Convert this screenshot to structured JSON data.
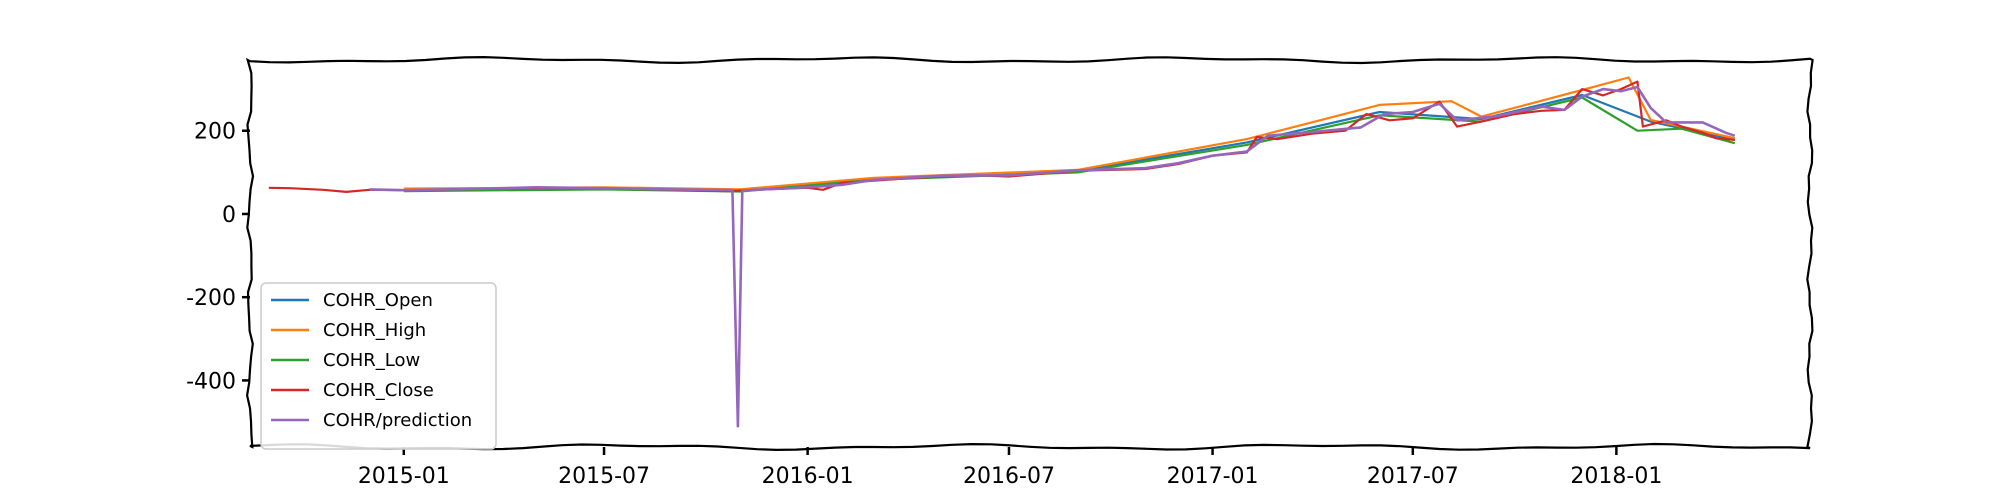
{
  "chart_data": {
    "type": "line",
    "x_type": "date",
    "xlim": [
      "2014-08-15",
      "2018-06-25"
    ],
    "ylim": [
      -560,
      370
    ],
    "x_ticks": [
      {
        "date": "2015-01-01",
        "label": "2015-01"
      },
      {
        "date": "2015-07-01",
        "label": "2015-07"
      },
      {
        "date": "2016-01-01",
        "label": "2016-01"
      },
      {
        "date": "2016-07-01",
        "label": "2016-07"
      },
      {
        "date": "2017-01-01",
        "label": "2017-01"
      },
      {
        "date": "2017-07-01",
        "label": "2017-07"
      },
      {
        "date": "2018-01-01",
        "label": "2018-01"
      }
    ],
    "y_ticks": [
      {
        "value": 200,
        "label": "200"
      },
      {
        "value": 0,
        "label": "0"
      },
      {
        "value": -200,
        "label": "-200"
      },
      {
        "value": -400,
        "label": "-400"
      }
    ],
    "legend_position": "lower-left",
    "series": [
      {
        "name": "COHR_Open",
        "color": "#1f77b4",
        "points": [
          [
            "2015-01-01",
            58
          ],
          [
            "2015-07-01",
            61
          ],
          [
            "2015-11-01",
            57
          ],
          [
            "2016-03-01",
            85
          ],
          [
            "2016-09-01",
            103
          ],
          [
            "2017-02-01",
            172
          ],
          [
            "2017-06-01",
            245
          ],
          [
            "2017-09-01",
            228
          ],
          [
            "2017-12-01",
            286
          ],
          [
            "2018-02-01",
            222
          ],
          [
            "2018-04-18",
            178
          ]
        ]
      },
      {
        "name": "COHR_High",
        "color": "#ff7f0e",
        "points": [
          [
            "2015-01-01",
            61
          ],
          [
            "2015-07-01",
            64
          ],
          [
            "2015-11-01",
            59
          ],
          [
            "2016-03-01",
            87
          ],
          [
            "2016-09-01",
            106
          ],
          [
            "2017-02-01",
            180
          ],
          [
            "2017-06-01",
            262
          ],
          [
            "2017-08-05",
            271
          ],
          [
            "2017-09-01",
            234
          ],
          [
            "2017-12-01",
            298
          ],
          [
            "2018-01-12",
            328
          ],
          [
            "2018-02-01",
            226
          ],
          [
            "2018-04-18",
            182
          ]
        ]
      },
      {
        "name": "COHR_Low",
        "color": "#2ca02c",
        "points": [
          [
            "2015-01-01",
            55
          ],
          [
            "2015-07-01",
            59
          ],
          [
            "2015-11-01",
            54
          ],
          [
            "2016-03-01",
            82
          ],
          [
            "2016-09-01",
            100
          ],
          [
            "2017-02-01",
            166
          ],
          [
            "2017-06-01",
            237
          ],
          [
            "2017-09-01",
            222
          ],
          [
            "2017-12-01",
            280
          ],
          [
            "2018-01-20",
            200
          ],
          [
            "2018-03-01",
            205
          ],
          [
            "2018-04-18",
            170
          ]
        ]
      },
      {
        "name": "COHR_Close",
        "color": "#d62728",
        "points": [
          [
            "2014-09-01",
            63
          ],
          [
            "2014-09-20",
            62
          ],
          [
            "2014-10-20",
            58
          ],
          [
            "2014-11-10",
            53
          ],
          [
            "2014-12-01",
            58
          ],
          [
            "2015-01-01",
            57
          ],
          [
            "2015-03-01",
            60
          ],
          [
            "2015-05-01",
            63
          ],
          [
            "2015-07-01",
            62
          ],
          [
            "2015-09-01",
            58
          ],
          [
            "2015-10-20",
            55
          ],
          [
            "2015-11-15",
            58
          ],
          [
            "2016-01-01",
            63
          ],
          [
            "2016-01-15",
            58
          ],
          [
            "2016-02-01",
            75
          ],
          [
            "2016-03-01",
            80
          ],
          [
            "2016-04-01",
            86
          ],
          [
            "2016-05-01",
            90
          ],
          [
            "2016-06-01",
            93
          ],
          [
            "2016-07-01",
            90
          ],
          [
            "2016-08-01",
            97
          ],
          [
            "2016-09-01",
            104
          ],
          [
            "2016-10-01",
            106
          ],
          [
            "2016-11-01",
            108
          ],
          [
            "2016-12-01",
            120
          ],
          [
            "2017-01-01",
            140
          ],
          [
            "2017-02-01",
            148
          ],
          [
            "2017-02-10",
            185
          ],
          [
            "2017-03-01",
            180
          ],
          [
            "2017-04-01",
            193
          ],
          [
            "2017-05-01",
            200
          ],
          [
            "2017-05-20",
            240
          ],
          [
            "2017-06-10",
            225
          ],
          [
            "2017-07-01",
            230
          ],
          [
            "2017-07-25",
            270
          ],
          [
            "2017-08-10",
            210
          ],
          [
            "2017-09-01",
            222
          ],
          [
            "2017-10-01",
            240
          ],
          [
            "2017-10-25",
            248
          ],
          [
            "2017-11-15",
            250
          ],
          [
            "2017-12-01",
            300
          ],
          [
            "2017-12-20",
            285
          ],
          [
            "2018-01-05",
            300
          ],
          [
            "2018-01-20",
            318
          ],
          [
            "2018-01-25",
            210
          ],
          [
            "2018-02-15",
            225
          ],
          [
            "2018-03-01",
            210
          ],
          [
            "2018-03-20",
            195
          ],
          [
            "2018-04-01",
            182
          ],
          [
            "2018-04-18",
            178
          ]
        ]
      },
      {
        "name": "COHR/prediction",
        "color": "#9467bd",
        "points": [
          [
            "2014-12-01",
            59
          ],
          [
            "2015-01-01",
            57
          ],
          [
            "2015-03-01",
            60
          ],
          [
            "2015-05-01",
            64
          ],
          [
            "2015-07-01",
            62
          ],
          [
            "2015-09-01",
            59
          ],
          [
            "2015-10-25",
            57
          ],
          [
            "2015-10-30",
            -510
          ],
          [
            "2015-11-03",
            56
          ],
          [
            "2015-11-15",
            58
          ],
          [
            "2016-01-01",
            64
          ],
          [
            "2016-02-01",
            70
          ],
          [
            "2016-03-01",
            82
          ],
          [
            "2016-05-01",
            92
          ],
          [
            "2016-07-01",
            93
          ],
          [
            "2016-09-01",
            105
          ],
          [
            "2016-11-01",
            110
          ],
          [
            "2016-12-01",
            122
          ],
          [
            "2017-01-01",
            140
          ],
          [
            "2017-02-01",
            150
          ],
          [
            "2017-02-20",
            188
          ],
          [
            "2017-04-01",
            197
          ],
          [
            "2017-05-15",
            208
          ],
          [
            "2017-06-05",
            240
          ],
          [
            "2017-07-01",
            245
          ],
          [
            "2017-07-25",
            265
          ],
          [
            "2017-08-10",
            225
          ],
          [
            "2017-09-15",
            235
          ],
          [
            "2017-10-25",
            258
          ],
          [
            "2017-11-15",
            250
          ],
          [
            "2017-12-01",
            282
          ],
          [
            "2017-12-20",
            300
          ],
          [
            "2018-01-05",
            295
          ],
          [
            "2018-01-20",
            305
          ],
          [
            "2018-02-01",
            255
          ],
          [
            "2018-02-15",
            220
          ],
          [
            "2018-03-20",
            220
          ],
          [
            "2018-04-10",
            195
          ],
          [
            "2018-04-18",
            188
          ]
        ]
      }
    ]
  }
}
